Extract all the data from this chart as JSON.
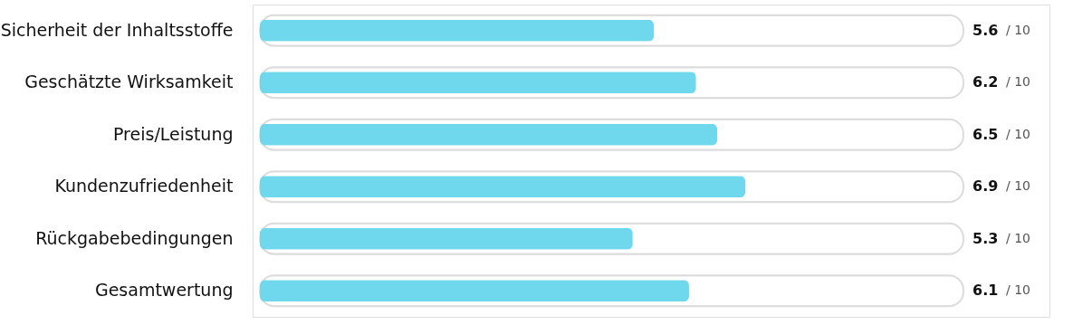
{
  "chart_data": {
    "type": "bar",
    "orientation": "horizontal",
    "categories": [
      "Sicherheit der Inhaltsstoffe",
      "Geschätzte Wirksamkeit",
      "Preis/Leistung",
      "Kundenzufriedenheit",
      "Rückgabebedingungen",
      "Gesamtwertung"
    ],
    "series": [
      {
        "color": "#ffffff",
        "values": [
          10,
          10,
          10,
          10,
          10,
          10
        ],
        "value_labels": [
          "/ 10",
          "/ 10",
          "/ 10",
          "/ 10",
          "/ 10",
          "/ 10"
        ]
      },
      {
        "color": "#6fd8ec",
        "values": [
          5.6,
          6.2,
          6.5,
          6.9,
          5.3,
          6.1
        ],
        "value_labels": [
          "5.6",
          "6.2",
          "6.5",
          "6.9",
          "5.3",
          "6.1"
        ]
      }
    ],
    "tick_labels": "y"
  }
}
